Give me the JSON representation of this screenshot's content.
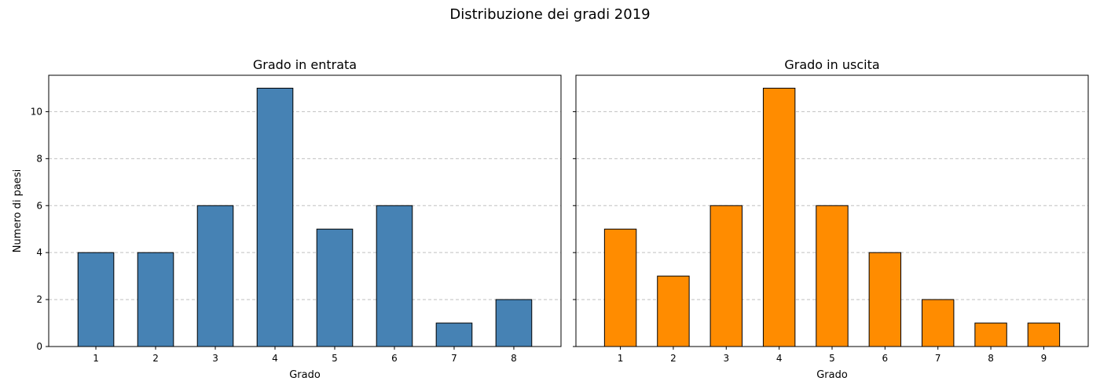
{
  "suptitle": "Distribuzione dei gradi 2019",
  "chart_data": [
    {
      "type": "bar",
      "title": "Grado in entrata",
      "xlabel": "Grado",
      "ylabel": "Numero di paesi",
      "categories": [
        "1",
        "2",
        "3",
        "4",
        "5",
        "6",
        "7",
        "8"
      ],
      "values": [
        4,
        4,
        6,
        11,
        5,
        6,
        1,
        2
      ],
      "ylim": [
        0,
        11.55
      ],
      "yticks": [
        0,
        2,
        4,
        6,
        8,
        10
      ],
      "grid": "y, dashed",
      "bar_color": "#4682b4",
      "edge_color": "#000000"
    },
    {
      "type": "bar",
      "title": "Grado in uscita",
      "xlabel": "Grado",
      "ylabel": "",
      "categories": [
        "1",
        "2",
        "3",
        "4",
        "5",
        "6",
        "7",
        "8",
        "9"
      ],
      "values": [
        5,
        3,
        6,
        11,
        6,
        4,
        2,
        1,
        1
      ],
      "ylim": [
        0,
        11.55
      ],
      "yticks": [
        0,
        2,
        4,
        6,
        8,
        10
      ],
      "grid": "y, dashed",
      "bar_color": "#ff8c00",
      "edge_color": "#000000"
    }
  ]
}
